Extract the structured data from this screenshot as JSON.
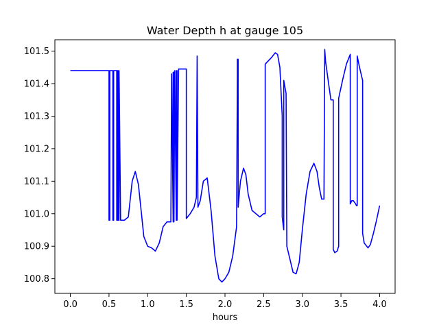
{
  "chart_data": {
    "type": "line",
    "title": "Water Depth h at gauge 105",
    "xlabel": "hours",
    "ylabel": "",
    "xlim": [
      -0.2,
      4.2
    ],
    "ylim": [
      100.755,
      101.535
    ],
    "xticks": [
      0.0,
      0.5,
      1.0,
      1.5,
      2.0,
      2.5,
      3.0,
      3.5,
      4.0
    ],
    "xtick_labels": [
      "0.0",
      "0.5",
      "1.0",
      "1.5",
      "2.0",
      "2.5",
      "3.0",
      "3.5",
      "4.0"
    ],
    "yticks": [
      100.8,
      100.9,
      101.0,
      101.1,
      101.2,
      101.3,
      101.4,
      101.5
    ],
    "ytick_labels": [
      "100.8",
      "100.9",
      "101.0",
      "101.1",
      "101.2",
      "101.3",
      "101.4",
      "101.5"
    ],
    "grid": false,
    "series": [
      {
        "color": "#0000ff",
        "x": [
          0.0,
          0.5,
          0.5,
          0.51,
          0.51,
          0.55,
          0.55,
          0.56,
          0.56,
          0.6,
          0.6,
          0.61,
          0.61,
          0.62,
          0.62,
          0.63,
          0.63,
          0.65,
          0.7,
          0.75,
          0.8,
          0.84,
          0.88,
          0.92,
          0.95,
          1.0,
          1.05,
          1.1,
          1.15,
          1.2,
          1.25,
          1.3,
          1.31,
          1.31,
          1.33,
          1.33,
          1.34,
          1.34,
          1.35,
          1.35,
          1.37,
          1.37,
          1.38,
          1.38,
          1.4,
          1.4,
          1.5,
          1.5,
          1.55,
          1.6,
          1.63,
          1.64,
          1.64,
          1.65,
          1.68,
          1.72,
          1.77,
          1.82,
          1.87,
          1.92,
          1.96,
          2.0,
          2.05,
          2.1,
          2.15,
          2.16,
          2.16,
          2.17,
          2.17,
          2.2,
          2.24,
          2.27,
          2.3,
          2.35,
          2.4,
          2.45,
          2.5,
          2.52,
          2.52,
          2.6,
          2.65,
          2.68,
          2.71,
          2.74,
          2.74,
          2.76,
          2.76,
          2.79,
          2.79,
          2.8,
          2.8,
          2.84,
          2.88,
          2.92,
          2.96,
          3.0,
          3.05,
          3.1,
          3.15,
          3.19,
          3.22,
          3.25,
          3.28,
          3.29,
          3.3,
          3.34,
          3.37,
          3.4,
          3.4,
          3.42,
          3.45,
          3.47,
          3.47,
          3.52,
          3.57,
          3.62,
          3.62,
          3.64,
          3.66,
          3.69,
          3.7,
          3.71,
          3.71,
          3.74,
          3.78,
          3.78,
          3.8,
          3.85,
          3.88,
          3.92,
          3.96,
          4.0
        ],
        "y": [
          101.44,
          101.44,
          100.98,
          100.98,
          101.44,
          101.44,
          100.98,
          100.98,
          101.44,
          101.44,
          100.98,
          100.98,
          101.44,
          101.44,
          100.98,
          100.98,
          101.44,
          100.98,
          100.98,
          100.99,
          101.1,
          101.13,
          101.09,
          101.0,
          100.93,
          100.9,
          100.895,
          100.885,
          100.91,
          100.96,
          100.975,
          100.975,
          101.43,
          101.43,
          100.975,
          101.435,
          101.435,
          100.975,
          101.44,
          101.44,
          100.98,
          101.44,
          101.44,
          100.98,
          101.445,
          101.445,
          101.445,
          100.985,
          101.0,
          101.02,
          101.05,
          101.485,
          101.485,
          101.02,
          101.04,
          101.1,
          101.11,
          101.01,
          100.87,
          100.8,
          100.79,
          100.8,
          100.82,
          100.87,
          100.96,
          101.43,
          101.475,
          101.475,
          101.02,
          101.1,
          101.14,
          101.12,
          101.06,
          101.01,
          101.0,
          100.99,
          101.0,
          101.0,
          101.46,
          101.48,
          101.495,
          101.49,
          101.45,
          101.3,
          100.99,
          100.95,
          101.41,
          101.37,
          101.37,
          100.9,
          100.9,
          100.86,
          100.82,
          100.815,
          100.85,
          100.95,
          101.06,
          101.13,
          101.155,
          101.13,
          101.08,
          101.045,
          101.045,
          101.505,
          101.47,
          101.4,
          101.35,
          101.35,
          100.89,
          100.88,
          100.885,
          100.9,
          101.355,
          101.41,
          101.46,
          101.49,
          101.03,
          101.04,
          101.04,
          101.03,
          101.025,
          101.025,
          101.485,
          101.45,
          101.41,
          100.94,
          100.91,
          100.895,
          100.905,
          100.94,
          100.98,
          101.025
        ]
      }
    ]
  }
}
